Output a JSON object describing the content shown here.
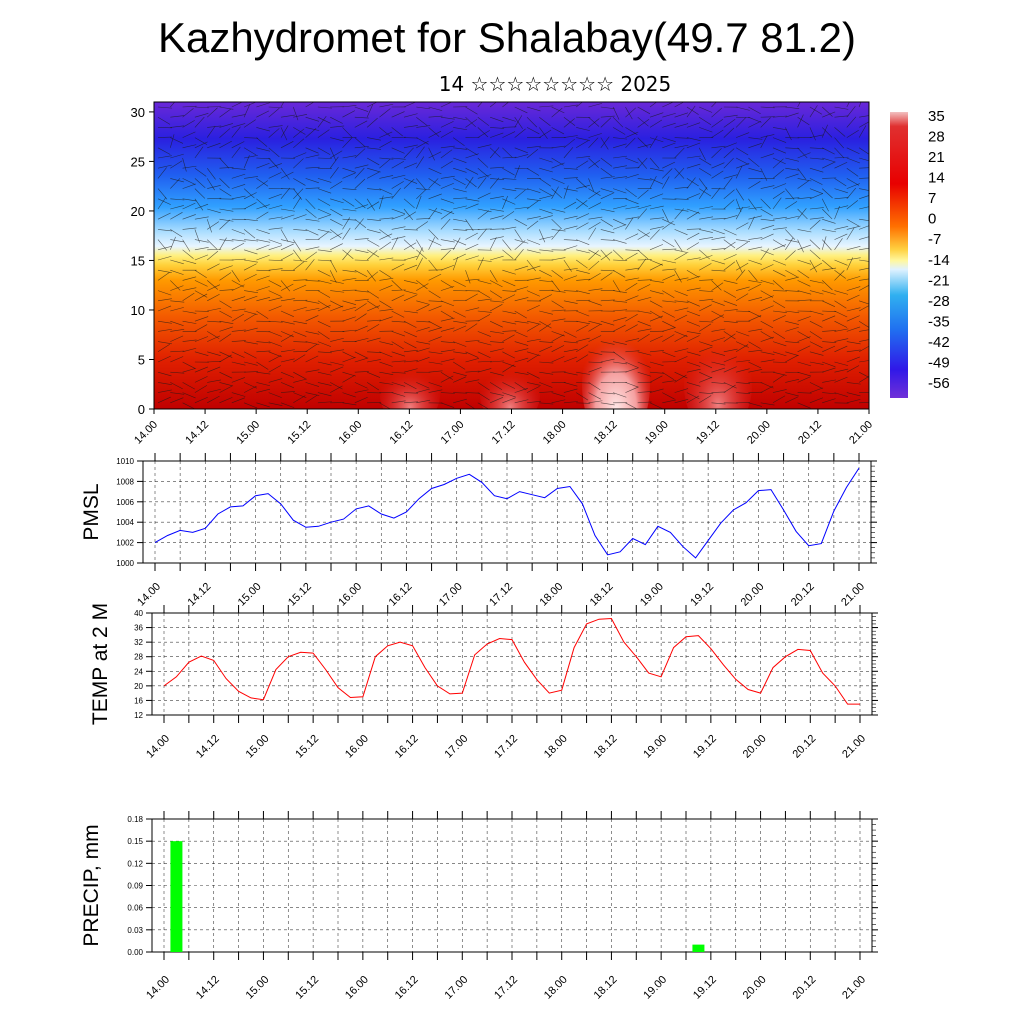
{
  "title": "Kazhydromet for Shalabay(49.7 81.2)",
  "subtitle": "14 ☆☆☆☆☆☆☆☆ 2025",
  "time_labels": [
    "14.00",
    "14.12",
    "15.00",
    "15.12",
    "16.00",
    "16.12",
    "17.00",
    "17.12",
    "18.00",
    "18.12",
    "19.00",
    "19.12",
    "20.00",
    "20.12",
    "21.00"
  ],
  "chart_data": [
    {
      "type": "heatmap",
      "panel": "cross-section",
      "y_ticks": [
        "0",
        "5",
        "10",
        "15",
        "20",
        "25",
        "30"
      ],
      "ylim": [
        0,
        31
      ],
      "colorbar_labels": [
        "35",
        "28",
        "21",
        "14",
        "7",
        "0",
        "-7",
        "-14",
        "-21",
        "-28",
        "-35",
        "-42",
        "-49",
        "-56"
      ],
      "colorbar_range": [
        -60,
        38
      ],
      "description_levels": [
        {
          "level": 0,
          "value": 30
        },
        {
          "level": 5,
          "value": 25
        },
        {
          "level": 10,
          "value": 14
        },
        {
          "level": 15,
          "value": -10
        },
        {
          "level": 20,
          "value": -30
        },
        {
          "level": 25,
          "value": -48
        },
        {
          "level": 30,
          "value": -58
        }
      ]
    },
    {
      "type": "line",
      "ylabel": "PMSL",
      "ylim": [
        1000,
        1010
      ],
      "y_ticks": [
        "1000",
        "1002",
        "1004",
        "1006",
        "1008",
        "1010"
      ],
      "color": "#0000ff",
      "values": [
        1002.0,
        1002.7,
        1003.2,
        1003.0,
        1003.4,
        1004.8,
        1005.5,
        1005.6,
        1006.6,
        1006.8,
        1005.8,
        1004.2,
        1003.5,
        1003.6,
        1004.0,
        1004.3,
        1005.3,
        1005.6,
        1004.8,
        1004.4,
        1005.0,
        1006.3,
        1007.3,
        1007.7,
        1008.3,
        1008.7,
        1007.9,
        1006.6,
        1006.3,
        1007.0,
        1006.7,
        1006.4,
        1007.3,
        1007.5,
        1005.8,
        1002.7,
        1000.8,
        1001.1,
        1002.4,
        1001.8,
        1003.6,
        1003.0,
        1001.6,
        1000.5,
        1002.2,
        1003.9,
        1005.2,
        1005.9,
        1007.1,
        1007.2,
        1005.2,
        1003.1,
        1001.7,
        1001.9,
        1005.1,
        1007.4,
        1009.3
      ]
    },
    {
      "type": "line",
      "ylabel": "TEMP at 2 M",
      "ylim": [
        12,
        40
      ],
      "y_ticks": [
        "12",
        "16",
        "20",
        "24",
        "28",
        "32",
        "36",
        "40"
      ],
      "color": "#ff0000",
      "values": [
        20.0,
        22.5,
        26.5,
        28.2,
        27.0,
        22.0,
        18.5,
        16.7,
        16.2,
        24.5,
        28.0,
        29.2,
        29.0,
        24.5,
        19.5,
        16.8,
        17.0,
        28.0,
        31.0,
        32.0,
        31.0,
        25.0,
        20.0,
        17.8,
        18.0,
        28.5,
        31.5,
        33.0,
        32.7,
        26.5,
        21.7,
        18.0,
        18.8,
        30.5,
        37.0,
        38.3,
        38.5,
        32.0,
        28.0,
        23.5,
        22.5,
        30.5,
        33.5,
        33.8,
        30.2,
        25.8,
        21.8,
        19.0,
        18.0,
        25.0,
        28.0,
        30.0,
        29.7,
        23.5,
        20.0,
        15.0,
        15.0
      ]
    },
    {
      "type": "bar",
      "ylabel": "PRECIP, mm",
      "ylim": [
        0,
        0.18
      ],
      "y_ticks": [
        "0.00",
        "0.03",
        "0.06",
        "0.09",
        "0.12",
        "0.15",
        "0.18"
      ],
      "color": "#00ff00",
      "bars": [
        {
          "t": 1,
          "value": 0.15
        },
        {
          "t": 43,
          "value": 0.01
        }
      ]
    }
  ]
}
